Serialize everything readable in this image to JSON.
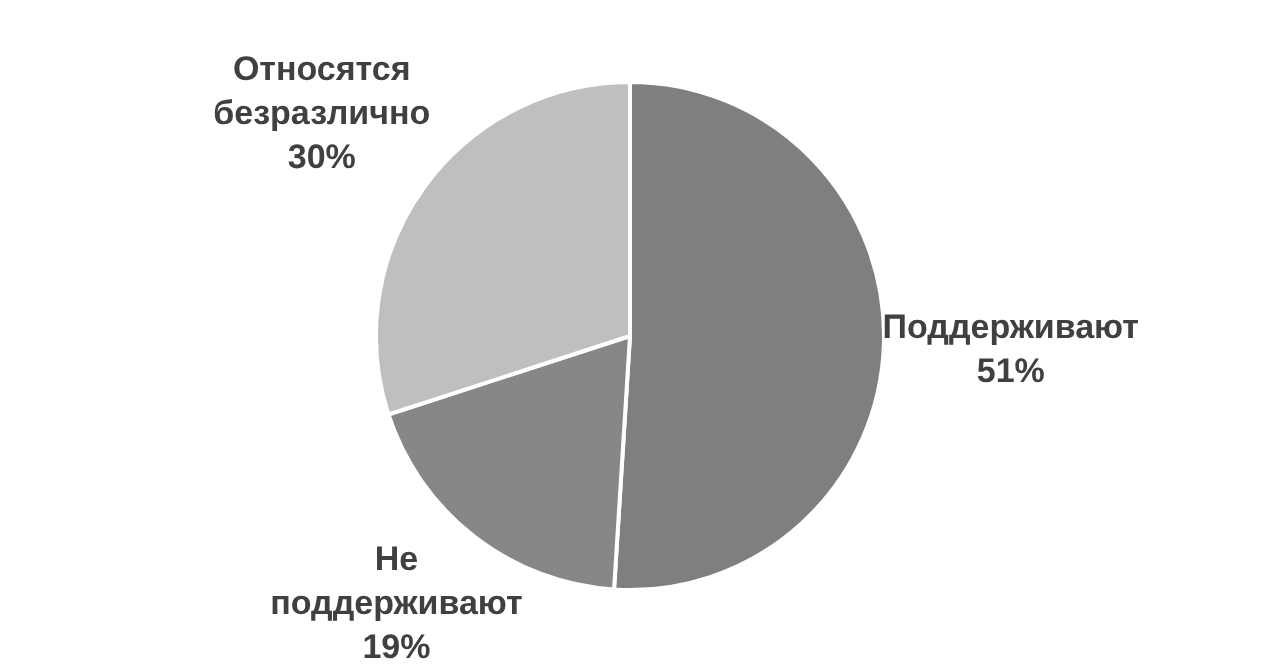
{
  "chart_data": {
    "type": "pie",
    "categories": [
      "Поддерживают",
      "Не поддерживают",
      "Относятся безразлично"
    ],
    "values": [
      51,
      19,
      30
    ],
    "value_labels": [
      "51%",
      "19%",
      "30%"
    ],
    "colors": [
      "#7f7f7f",
      "#878787",
      "#bfbfbf"
    ]
  }
}
